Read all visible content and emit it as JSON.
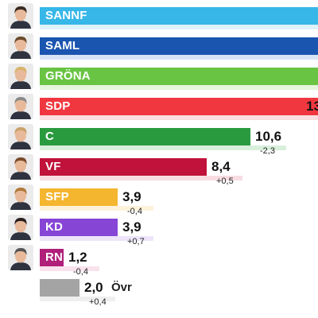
{
  "chart_data": {
    "type": "bar",
    "orientation": "horizontal",
    "decimal_separator": ",",
    "series": [
      {
        "label": "SANNF",
        "value": null,
        "value_text": "",
        "change_text": "",
        "color": "#36b7e8",
        "shadow_color": "#b5e3f5",
        "avatar": true
      },
      {
        "label": "SAML",
        "value": null,
        "value_text": "",
        "change_text": "",
        "color": "#1a55b0",
        "shadow_color": "#a8c0e8",
        "avatar": true
      },
      {
        "label": "GRÖNA",
        "value": null,
        "value_text": "",
        "change_text": "",
        "color": "#69c443",
        "shadow_color": "#c5ebb3",
        "avatar": true
      },
      {
        "label": "SDP",
        "value": null,
        "value_text": "13",
        "change_text": "",
        "color": "#f0373f",
        "shadow_color": "#f7b5b8",
        "avatar": true
      },
      {
        "label": "C",
        "value": 10.6,
        "value_text": "10,6",
        "change_text": "-2,3",
        "color": "#2a9a3f",
        "shadow_color": "#a9dcb1",
        "avatar": true
      },
      {
        "label": "VF",
        "value": 8.4,
        "value_text": "8,4",
        "change_text": "+0,5",
        "color": "#c0123b",
        "shadow_color": "#f0b2c1",
        "avatar": true
      },
      {
        "label": "SFP",
        "value": 3.9,
        "value_text": "3,9",
        "change_text": "-0,4",
        "color": "#f4b52f",
        "shadow_color": "#fbe2aa",
        "avatar": true
      },
      {
        "label": "KD",
        "value": 3.9,
        "value_text": "3,9",
        "change_text": "+0,7",
        "color": "#8745d6",
        "shadow_color": "#d8c4f2",
        "avatar": true
      },
      {
        "label": "RN",
        "value": 1.2,
        "value_text": "1,2",
        "change_text": "-0,4",
        "color": "#b01f7a",
        "shadow_color": "#f2bfd6",
        "avatar": true
      },
      {
        "label": "",
        "value": 2.0,
        "value_text": "2,0",
        "change_text": "+0,4",
        "color": "#a4a4a4",
        "shadow_color": "#dcdcdc",
        "avatar": false,
        "other_label": "Övr"
      }
    ]
  }
}
